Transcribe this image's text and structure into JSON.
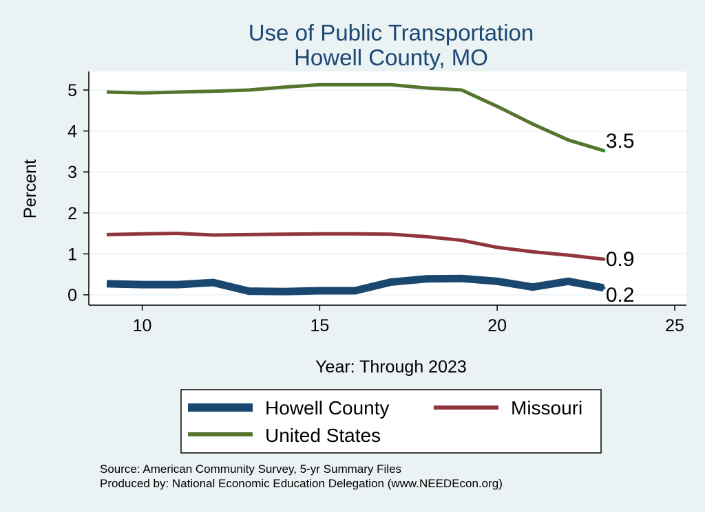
{
  "chart_data": {
    "type": "line",
    "title": "Use of Public Transportation",
    "subtitle": "Howell County, MO",
    "xlabel": "Year: Through 2023",
    "ylabel": "Percent",
    "xlim": [
      9,
      25
    ],
    "ylim": [
      0,
      5.2
    ],
    "xticks": [
      10,
      15,
      20,
      25
    ],
    "yticks": [
      0,
      1,
      2,
      3,
      4,
      5
    ],
    "x": [
      9,
      10,
      11,
      12,
      13,
      14,
      15,
      16,
      17,
      18,
      19,
      20,
      21,
      22,
      23
    ],
    "series": [
      {
        "name": "Howell County",
        "color": "#1a476f",
        "values": [
          0.27,
          0.25,
          0.25,
          0.3,
          0.09,
          0.08,
          0.1,
          0.1,
          0.31,
          0.39,
          0.4,
          0.33,
          0.19,
          0.33,
          0.17
        ],
        "end_label": "0.2"
      },
      {
        "name": "Missouri",
        "color": "#90353b",
        "values": [
          1.47,
          1.49,
          1.5,
          1.46,
          1.47,
          1.48,
          1.49,
          1.49,
          1.48,
          1.42,
          1.33,
          1.16,
          1.05,
          0.97,
          0.87
        ],
        "end_label": "0.9"
      },
      {
        "name": "United States",
        "color": "#55752f",
        "values": [
          4.95,
          4.93,
          4.95,
          4.97,
          5.0,
          5.07,
          5.13,
          5.13,
          5.13,
          5.05,
          5.0,
          4.6,
          4.17,
          3.78,
          3.52
        ],
        "end_label": "3.5"
      }
    ],
    "legend": {
      "position": "bottom",
      "entries": [
        "Howell County",
        "Missouri",
        "United States"
      ]
    },
    "grid": true
  },
  "notes": {
    "source": "Source: American Community Survey, 5-yr Summary Files",
    "produced": "Produced by: National Economic Education Delegation (www.NEEDEcon.org)"
  }
}
